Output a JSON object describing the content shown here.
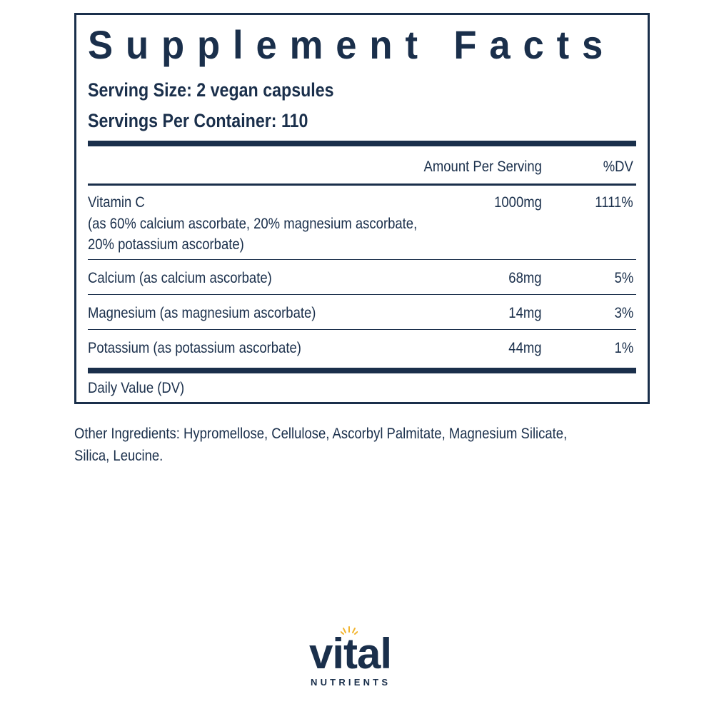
{
  "panel": {
    "title": "Supplement Facts",
    "serving_size": "Serving Size: 2 vegan capsules",
    "servings_per_container": "Servings Per Container: 110",
    "header_amount": "Amount Per Serving",
    "header_dv": "%DV",
    "rows": [
      {
        "name_lines": [
          "Vitamin C",
          "(as 60% calcium ascorbate, 20% magnesium ascorbate,",
          "20% potassium ascorbate)"
        ],
        "amount": "1000mg",
        "dv": "1111%"
      },
      {
        "name_lines": [
          "Calcium (as calcium ascorbate)"
        ],
        "amount": "68mg",
        "dv": "5%"
      },
      {
        "name_lines": [
          "Magnesium (as magnesium ascorbate)"
        ],
        "amount": "14mg",
        "dv": "3%"
      },
      {
        "name_lines": [
          "Potassium (as potassium ascorbate)"
        ],
        "amount": "44mg",
        "dv": "1%"
      }
    ],
    "footnote": "Daily Value (DV)"
  },
  "other_ingredients": {
    "line1": "Other Ingredients: Hypromellose, Cellulose, Ascorbyl Palmitate, Magnesium Silicate,",
    "line2": "Silica, Leucine."
  },
  "logo": {
    "word": "vital",
    "sub": "NUTRIENTS",
    "sun_color": "#f2b531",
    "brand_color": "#1a2f4b"
  }
}
